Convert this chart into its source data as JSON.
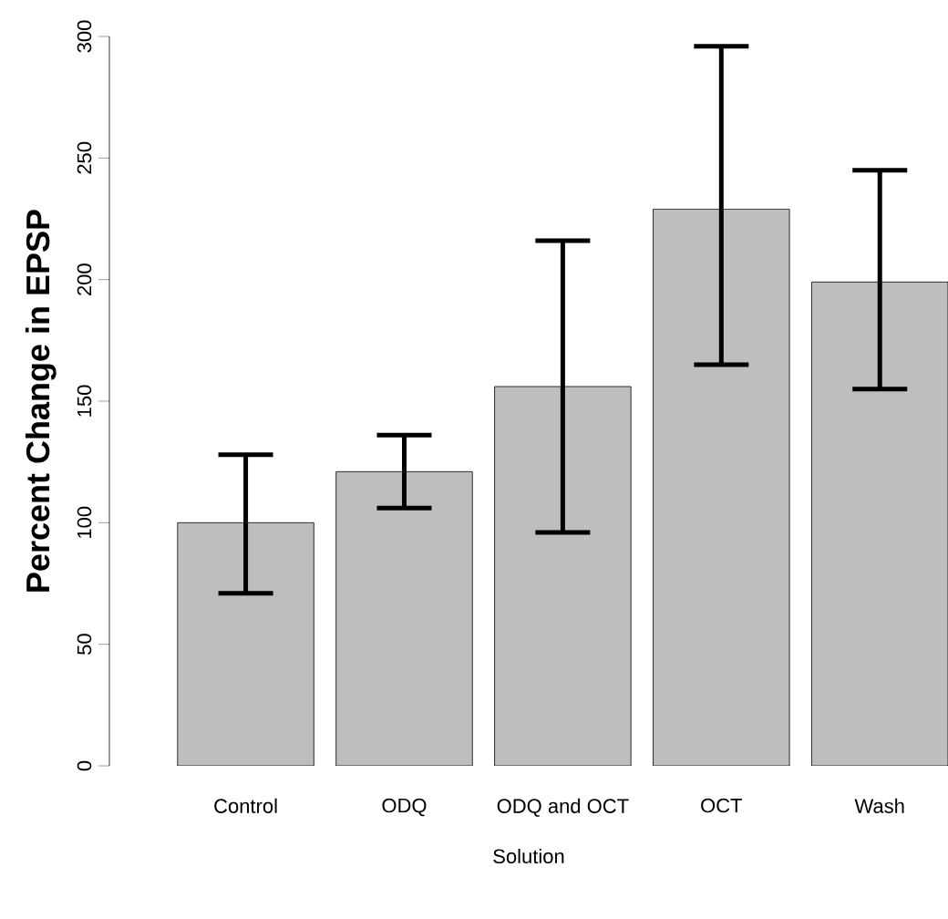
{
  "chart_data": {
    "type": "bar",
    "xlabel": "Solution",
    "ylabel": "Percent Change in EPSP",
    "categories": [
      "Control",
      "ODQ",
      "ODQ and OCT",
      "OCT",
      "Wash"
    ],
    "values": [
      100,
      121,
      156,
      229,
      199
    ],
    "color": "#bebebe",
    "errors": [
      [
        71,
        128
      ],
      [
        106,
        136
      ],
      [
        96,
        216
      ],
      [
        165,
        296
      ],
      [
        155,
        245
      ]
    ],
    "ylim": [
      0,
      300
    ],
    "yticks": [
      0,
      50,
      100,
      150,
      200,
      250,
      300
    ]
  }
}
